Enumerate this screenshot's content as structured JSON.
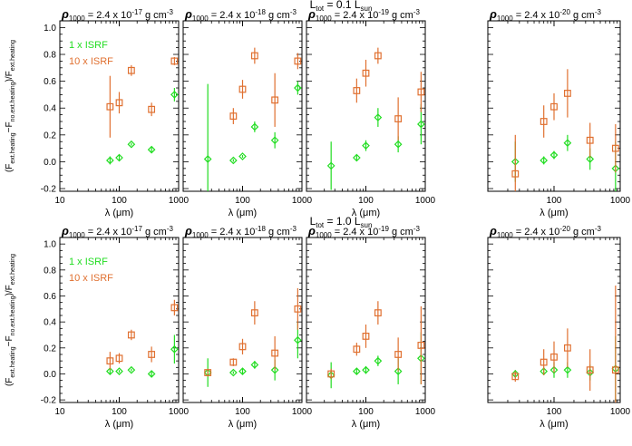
{
  "row_titles": [
    {
      "pre": "L",
      "sub": "tot",
      "mid": " = 0.1 L",
      "sub2": "sun"
    },
    {
      "pre": "L",
      "sub": "tot",
      "mid": " = 1.0 L",
      "sub2": "sun"
    }
  ],
  "density_labels": [
    {
      "rho": "ρ",
      "sub": "1000",
      "text": " = 2.4 x 10",
      "exp": "-17",
      "unit": " g cm",
      "unit_exp": "-3"
    },
    {
      "rho": "ρ",
      "sub": "1000",
      "text": " = 2.4 x 10",
      "exp": "-18",
      "unit": " g cm",
      "unit_exp": "-3"
    },
    {
      "rho": "ρ",
      "sub": "1000",
      "text": " = 2.4 x 10",
      "exp": "-19",
      "unit": " g cm",
      "unit_exp": "-3"
    },
    {
      "rho": "ρ",
      "sub": "1000",
      "text": " = 2.4 x 10",
      "exp": "-20",
      "unit": " g cm",
      "unit_exp": "-3"
    }
  ],
  "ylabel": {
    "a": "(F",
    "s1": "ext.heating",
    "b": "−F",
    "s2": "no.ext.heating",
    "c": ")/F",
    "s3": "ext.heating"
  },
  "xlabel": "λ (μm)",
  "legend": [
    {
      "label": "1 x ISRF",
      "color": "#22dd22"
    },
    {
      "label": "10 x ISRF",
      "color": "#e07030"
    }
  ],
  "colors": {
    "isrf1": "#22dd22",
    "isrf10": "#e07030"
  },
  "x_ticks": [
    {
      "value": 10,
      "label": "10"
    },
    {
      "value": 100,
      "label": "100"
    },
    {
      "value": 1000,
      "label": "1000"
    }
  ],
  "y_ticks": [
    {
      "value": -0.2,
      "label": "-0.2"
    },
    {
      "value": 0.0,
      "label": "0.0"
    },
    {
      "value": 0.2,
      "label": "0.2"
    },
    {
      "value": 0.4,
      "label": "0.4"
    },
    {
      "value": 0.6,
      "label": "0.6"
    },
    {
      "value": 0.8,
      "label": "0.8"
    },
    {
      "value": 1.0,
      "label": "1.0"
    }
  ],
  "chart_data": [
    {
      "type": "scatter",
      "row": 0,
      "col": 0,
      "xscale": "log",
      "xlim": [
        10,
        1000
      ],
      "ylim": [
        -0.22,
        1.05
      ],
      "series": [
        {
          "name": "1 x ISRF",
          "marker": "diamond",
          "points": [
            {
              "x": 70,
              "y": 0.01,
              "err": 0.03
            },
            {
              "x": 100,
              "y": 0.03,
              "err": 0.02
            },
            {
              "x": 160,
              "y": 0.13,
              "err": 0.01
            },
            {
              "x": 350,
              "y": 0.09,
              "err": 0.02
            },
            {
              "x": 850,
              "y": 0.5,
              "err": 0.05
            }
          ]
        },
        {
          "name": "10 x ISRF",
          "marker": "square",
          "points": [
            {
              "x": 70,
              "y": 0.41,
              "err": 0.23
            },
            {
              "x": 100,
              "y": 0.44,
              "err": 0.08
            },
            {
              "x": 160,
              "y": 0.68,
              "err": 0.04
            },
            {
              "x": 350,
              "y": 0.39,
              "err": 0.05
            },
            {
              "x": 850,
              "y": 0.75,
              "err": 0.03
            }
          ]
        }
      ]
    },
    {
      "type": "scatter",
      "row": 0,
      "col": 1,
      "xscale": "log",
      "xlim": [
        10,
        1000
      ],
      "ylim": [
        -0.22,
        1.05
      ],
      "series": [
        {
          "name": "1 x ISRF",
          "marker": "diamond",
          "points": [
            {
              "x": 26,
              "y": 0.02,
              "err": 0.56
            },
            {
              "x": 70,
              "y": 0.01,
              "err": 0.01
            },
            {
              "x": 100,
              "y": 0.04,
              "err": 0.01
            },
            {
              "x": 160,
              "y": 0.26,
              "err": 0.04
            },
            {
              "x": 350,
              "y": 0.16,
              "err": 0.06
            },
            {
              "x": 850,
              "y": 0.55,
              "err": 0.05
            }
          ]
        },
        {
          "name": "10 x ISRF",
          "marker": "square",
          "points": [
            {
              "x": 70,
              "y": 0.34,
              "err": 0.06
            },
            {
              "x": 100,
              "y": 0.54,
              "err": 0.07
            },
            {
              "x": 160,
              "y": 0.79,
              "err": 0.06
            },
            {
              "x": 350,
              "y": 0.46,
              "err": 0.2
            },
            {
              "x": 850,
              "y": 0.75,
              "err": 0.06
            }
          ]
        }
      ]
    },
    {
      "type": "scatter",
      "row": 0,
      "col": 2,
      "xscale": "log",
      "xlim": [
        10,
        1000
      ],
      "ylim": [
        -0.22,
        1.05
      ],
      "series": [
        {
          "name": "1 x ISRF",
          "marker": "diamond",
          "points": [
            {
              "x": 26,
              "y": -0.03,
              "err": 0.18
            },
            {
              "x": 70,
              "y": 0.03,
              "err": 0.02
            },
            {
              "x": 100,
              "y": 0.12,
              "err": 0.04
            },
            {
              "x": 160,
              "y": 0.33,
              "err": 0.07
            },
            {
              "x": 350,
              "y": 0.13,
              "err": 0.06
            },
            {
              "x": 850,
              "y": 0.28,
              "err": 0.15
            }
          ]
        },
        {
          "name": "10 x ISRF",
          "marker": "square",
          "points": [
            {
              "x": 70,
              "y": 0.53,
              "err": 0.09
            },
            {
              "x": 100,
              "y": 0.66,
              "err": 0.1
            },
            {
              "x": 160,
              "y": 0.79,
              "err": 0.06
            },
            {
              "x": 350,
              "y": 0.32,
              "err": 0.16
            },
            {
              "x": 850,
              "y": 0.52,
              "err": 0.15
            }
          ]
        }
      ]
    },
    {
      "type": "scatter",
      "row": 0,
      "col": 3,
      "xscale": "log",
      "xlim": [
        10,
        1000
      ],
      "ylim": [
        -0.22,
        1.05
      ],
      "series": [
        {
          "name": "1 x ISRF",
          "marker": "diamond",
          "points": [
            {
              "x": 26,
              "y": 0.0,
              "err": 0.15
            },
            {
              "x": 70,
              "y": 0.01,
              "err": 0.03
            },
            {
              "x": 100,
              "y": 0.05,
              "err": 0.03
            },
            {
              "x": 160,
              "y": 0.14,
              "err": 0.06
            },
            {
              "x": 350,
              "y": 0.02,
              "err": 0.08
            },
            {
              "x": 850,
              "y": -0.05,
              "err": 0.2
            }
          ]
        },
        {
          "name": "10 x ISRF",
          "marker": "square",
          "points": [
            {
              "x": 26,
              "y": -0.09,
              "err": 0.29
            },
            {
              "x": 70,
              "y": 0.3,
              "err": 0.12
            },
            {
              "x": 100,
              "y": 0.41,
              "err": 0.1
            },
            {
              "x": 160,
              "y": 0.51,
              "err": 0.18
            },
            {
              "x": 350,
              "y": 0.16,
              "err": 0.13
            },
            {
              "x": 850,
              "y": 0.1,
              "err": 0.18
            }
          ]
        }
      ]
    },
    {
      "type": "scatter",
      "row": 1,
      "col": 0,
      "xscale": "log",
      "xlim": [
        10,
        1000
      ],
      "ylim": [
        -0.22,
        1.05
      ],
      "series": [
        {
          "name": "1 x ISRF",
          "marker": "diamond",
          "points": [
            {
              "x": 70,
              "y": 0.02,
              "err": 0.02
            },
            {
              "x": 100,
              "y": 0.02,
              "err": 0.01
            },
            {
              "x": 160,
              "y": 0.03,
              "err": 0.01
            },
            {
              "x": 350,
              "y": 0.0,
              "err": 0.02
            },
            {
              "x": 850,
              "y": 0.19,
              "err": 0.11
            }
          ]
        },
        {
          "name": "10 x ISRF",
          "marker": "square",
          "points": [
            {
              "x": 70,
              "y": 0.1,
              "err": 0.07
            },
            {
              "x": 100,
              "y": 0.12,
              "err": 0.04
            },
            {
              "x": 160,
              "y": 0.3,
              "err": 0.04
            },
            {
              "x": 350,
              "y": 0.15,
              "err": 0.06
            },
            {
              "x": 850,
              "y": 0.51,
              "err": 0.06
            }
          ]
        }
      ]
    },
    {
      "type": "scatter",
      "row": 1,
      "col": 1,
      "xscale": "log",
      "xlim": [
        10,
        1000
      ],
      "ylim": [
        -0.22,
        1.05
      ],
      "series": [
        {
          "name": "1 x ISRF",
          "marker": "diamond",
          "points": [
            {
              "x": 26,
              "y": 0.01,
              "err": 0.11
            },
            {
              "x": 70,
              "y": 0.01,
              "err": 0.01
            },
            {
              "x": 100,
              "y": 0.02,
              "err": 0.02
            },
            {
              "x": 160,
              "y": 0.07,
              "err": 0.03
            },
            {
              "x": 350,
              "y": 0.03,
              "err": 0.08
            },
            {
              "x": 850,
              "y": 0.26,
              "err": 0.14
            }
          ]
        },
        {
          "name": "10 x ISRF",
          "marker": "square",
          "points": [
            {
              "x": 26,
              "y": 0.01,
              "err": 0.03
            },
            {
              "x": 70,
              "y": 0.09,
              "err": 0.03
            },
            {
              "x": 100,
              "y": 0.21,
              "err": 0.06
            },
            {
              "x": 160,
              "y": 0.47,
              "err": 0.09
            },
            {
              "x": 350,
              "y": 0.16,
              "err": 0.13
            },
            {
              "x": 850,
              "y": 0.5,
              "err": 0.16
            }
          ]
        }
      ]
    },
    {
      "type": "scatter",
      "row": 1,
      "col": 2,
      "xscale": "log",
      "xlim": [
        10,
        1000
      ],
      "ylim": [
        -0.22,
        1.05
      ],
      "series": [
        {
          "name": "1 x ISRF",
          "marker": "diamond",
          "points": [
            {
              "x": 26,
              "y": -0.01,
              "err": 0.1
            },
            {
              "x": 70,
              "y": 0.02,
              "err": 0.02
            },
            {
              "x": 100,
              "y": 0.03,
              "err": 0.03
            },
            {
              "x": 160,
              "y": 0.1,
              "err": 0.04
            },
            {
              "x": 350,
              "y": 0.02,
              "err": 0.1
            },
            {
              "x": 850,
              "y": 0.12,
              "err": 0.2
            }
          ]
        },
        {
          "name": "10 x ISRF",
          "marker": "square",
          "points": [
            {
              "x": 26,
              "y": 0.0,
              "err": 0.04
            },
            {
              "x": 70,
              "y": 0.19,
              "err": 0.05
            },
            {
              "x": 100,
              "y": 0.29,
              "err": 0.09
            },
            {
              "x": 160,
              "y": 0.47,
              "err": 0.09
            },
            {
              "x": 350,
              "y": 0.15,
              "err": 0.13
            },
            {
              "x": 850,
              "y": 0.22,
              "err": 0.3
            }
          ]
        }
      ]
    },
    {
      "type": "scatter",
      "row": 1,
      "col": 3,
      "xscale": "log",
      "xlim": [
        10,
        1000
      ],
      "ylim": [
        -0.22,
        1.05
      ],
      "series": [
        {
          "name": "1 x ISRF",
          "marker": "diamond",
          "points": [
            {
              "x": 26,
              "y": 0.0,
              "err": 0.03
            },
            {
              "x": 70,
              "y": 0.02,
              "err": 0.03
            },
            {
              "x": 100,
              "y": 0.03,
              "err": 0.06
            },
            {
              "x": 160,
              "y": 0.03,
              "err": 0.06
            },
            {
              "x": 350,
              "y": 0.01,
              "err": 0.06
            },
            {
              "x": 850,
              "y": 0.04,
              "err": 0.25
            }
          ]
        },
        {
          "name": "10 x ISRF",
          "marker": "square",
          "points": [
            {
              "x": 26,
              "y": -0.02,
              "err": 0.04
            },
            {
              "x": 70,
              "y": 0.09,
              "err": 0.1
            },
            {
              "x": 100,
              "y": 0.13,
              "err": 0.12
            },
            {
              "x": 160,
              "y": 0.2,
              "err": 0.15
            },
            {
              "x": 350,
              "y": 0.03,
              "err": 0.16
            },
            {
              "x": 850,
              "y": 0.03,
              "err": 0.65
            }
          ]
        }
      ]
    }
  ]
}
